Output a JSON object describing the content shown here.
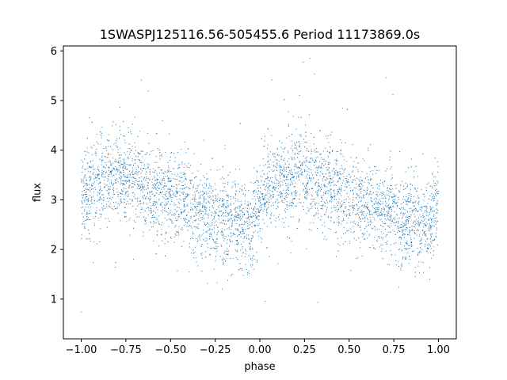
{
  "chart_data": {
    "type": "scatter",
    "title": "1SWASPJ125116.56-505455.6 Period 11173869.0s",
    "xlabel": "phase",
    "ylabel": "flux",
    "xlim": [
      -1.1,
      1.1
    ],
    "ylim": [
      0.2,
      6.1
    ],
    "xticks": [
      -1.0,
      -0.75,
      -0.5,
      -0.25,
      0.0,
      0.25,
      0.5,
      0.75,
      1.0
    ],
    "xtick_labels": [
      "−1.00",
      "−0.75",
      "−0.50",
      "−0.25",
      "0.00",
      "0.25",
      "0.50",
      "0.75",
      "1.00"
    ],
    "yticks": [
      1,
      2,
      3,
      4,
      5,
      6
    ],
    "ytick_labels": [
      "1",
      "2",
      "3",
      "4",
      "5",
      "6"
    ],
    "grid": false,
    "legend": "none",
    "point_color": "#1f77b4",
    "series": [
      {
        "phase_profile": [
          {
            "x": -1.0,
            "y": 3.1
          },
          {
            "x": -0.9,
            "y": 3.3
          },
          {
            "x": -0.8,
            "y": 3.5
          },
          {
            "x": -0.75,
            "y": 3.55
          },
          {
            "x": -0.7,
            "y": 3.4
          },
          {
            "x": -0.6,
            "y": 3.2
          },
          {
            "x": -0.5,
            "y": 3.1
          },
          {
            "x": -0.4,
            "y": 2.9
          },
          {
            "x": -0.3,
            "y": 2.75
          },
          {
            "x": -0.2,
            "y": 2.6
          },
          {
            "x": -0.1,
            "y": 2.45
          },
          {
            "x": -0.05,
            "y": 2.4
          },
          {
            "x": 0.0,
            "y": 3.1
          },
          {
            "x": 0.1,
            "y": 3.3
          },
          {
            "x": 0.2,
            "y": 3.5
          },
          {
            "x": 0.25,
            "y": 3.55
          },
          {
            "x": 0.3,
            "y": 3.4
          },
          {
            "x": 0.4,
            "y": 3.2
          },
          {
            "x": 0.5,
            "y": 3.1
          },
          {
            "x": 0.6,
            "y": 2.9
          },
          {
            "x": 0.7,
            "y": 2.75
          },
          {
            "x": 0.8,
            "y": 2.6
          },
          {
            "x": 0.9,
            "y": 2.45
          },
          {
            "x": 0.95,
            "y": 2.4
          },
          {
            "x": 1.0,
            "y": 3.1
          }
        ],
        "scatter_spread": 0.45,
        "point_count": 5000
      }
    ]
  }
}
